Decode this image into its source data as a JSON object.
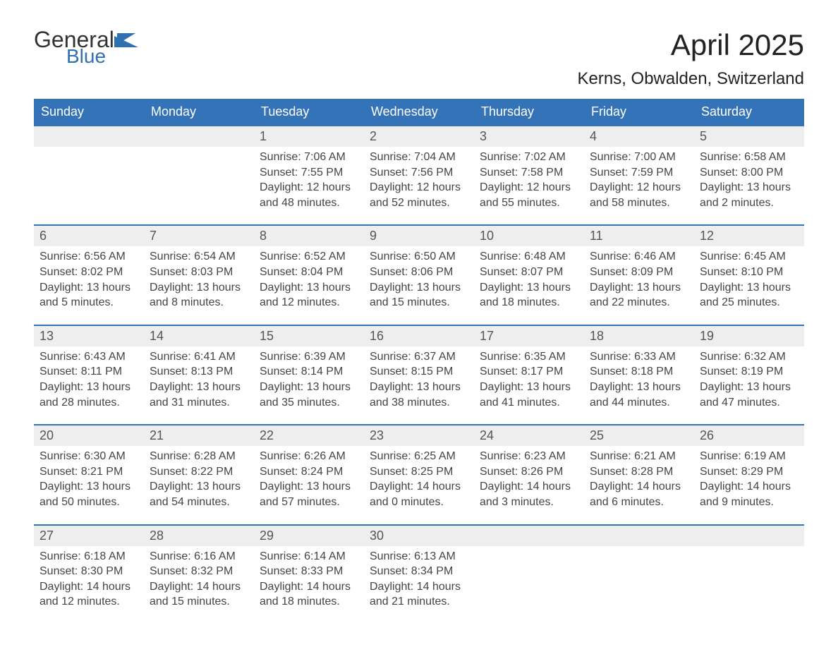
{
  "brand": {
    "line1": "General",
    "line2": "Blue",
    "icon_color": "#2f70b3",
    "text_color": "#333333"
  },
  "title": "April 2025",
  "location": "Kerns, Obwalden, Switzerland",
  "colors": {
    "header_bg": "#3573b8",
    "header_text": "#ffffff",
    "daynum_bg": "#eeeeee",
    "border": "#3573b8",
    "body_text": "#444444",
    "daynum_text": "#555555",
    "background": "#ffffff"
  },
  "typography": {
    "title_fontsize": 42,
    "location_fontsize": 24,
    "weekday_fontsize": 18,
    "daynum_fontsize": 18,
    "detail_fontsize": 16
  },
  "weekdays": [
    "Sunday",
    "Monday",
    "Tuesday",
    "Wednesday",
    "Thursday",
    "Friday",
    "Saturday"
  ],
  "weeks": [
    [
      {
        "n": "",
        "sunrise": "",
        "sunset": "",
        "daylight": ""
      },
      {
        "n": "",
        "sunrise": "",
        "sunset": "",
        "daylight": ""
      },
      {
        "n": "1",
        "sunrise": "Sunrise: 7:06 AM",
        "sunset": "Sunset: 7:55 PM",
        "daylight": "Daylight: 12 hours and 48 minutes."
      },
      {
        "n": "2",
        "sunrise": "Sunrise: 7:04 AM",
        "sunset": "Sunset: 7:56 PM",
        "daylight": "Daylight: 12 hours and 52 minutes."
      },
      {
        "n": "3",
        "sunrise": "Sunrise: 7:02 AM",
        "sunset": "Sunset: 7:58 PM",
        "daylight": "Daylight: 12 hours and 55 minutes."
      },
      {
        "n": "4",
        "sunrise": "Sunrise: 7:00 AM",
        "sunset": "Sunset: 7:59 PM",
        "daylight": "Daylight: 12 hours and 58 minutes."
      },
      {
        "n": "5",
        "sunrise": "Sunrise: 6:58 AM",
        "sunset": "Sunset: 8:00 PM",
        "daylight": "Daylight: 13 hours and 2 minutes."
      }
    ],
    [
      {
        "n": "6",
        "sunrise": "Sunrise: 6:56 AM",
        "sunset": "Sunset: 8:02 PM",
        "daylight": "Daylight: 13 hours and 5 minutes."
      },
      {
        "n": "7",
        "sunrise": "Sunrise: 6:54 AM",
        "sunset": "Sunset: 8:03 PM",
        "daylight": "Daylight: 13 hours and 8 minutes."
      },
      {
        "n": "8",
        "sunrise": "Sunrise: 6:52 AM",
        "sunset": "Sunset: 8:04 PM",
        "daylight": "Daylight: 13 hours and 12 minutes."
      },
      {
        "n": "9",
        "sunrise": "Sunrise: 6:50 AM",
        "sunset": "Sunset: 8:06 PM",
        "daylight": "Daylight: 13 hours and 15 minutes."
      },
      {
        "n": "10",
        "sunrise": "Sunrise: 6:48 AM",
        "sunset": "Sunset: 8:07 PM",
        "daylight": "Daylight: 13 hours and 18 minutes."
      },
      {
        "n": "11",
        "sunrise": "Sunrise: 6:46 AM",
        "sunset": "Sunset: 8:09 PM",
        "daylight": "Daylight: 13 hours and 22 minutes."
      },
      {
        "n": "12",
        "sunrise": "Sunrise: 6:45 AM",
        "sunset": "Sunset: 8:10 PM",
        "daylight": "Daylight: 13 hours and 25 minutes."
      }
    ],
    [
      {
        "n": "13",
        "sunrise": "Sunrise: 6:43 AM",
        "sunset": "Sunset: 8:11 PM",
        "daylight": "Daylight: 13 hours and 28 minutes."
      },
      {
        "n": "14",
        "sunrise": "Sunrise: 6:41 AM",
        "sunset": "Sunset: 8:13 PM",
        "daylight": "Daylight: 13 hours and 31 minutes."
      },
      {
        "n": "15",
        "sunrise": "Sunrise: 6:39 AM",
        "sunset": "Sunset: 8:14 PM",
        "daylight": "Daylight: 13 hours and 35 minutes."
      },
      {
        "n": "16",
        "sunrise": "Sunrise: 6:37 AM",
        "sunset": "Sunset: 8:15 PM",
        "daylight": "Daylight: 13 hours and 38 minutes."
      },
      {
        "n": "17",
        "sunrise": "Sunrise: 6:35 AM",
        "sunset": "Sunset: 8:17 PM",
        "daylight": "Daylight: 13 hours and 41 minutes."
      },
      {
        "n": "18",
        "sunrise": "Sunrise: 6:33 AM",
        "sunset": "Sunset: 8:18 PM",
        "daylight": "Daylight: 13 hours and 44 minutes."
      },
      {
        "n": "19",
        "sunrise": "Sunrise: 6:32 AM",
        "sunset": "Sunset: 8:19 PM",
        "daylight": "Daylight: 13 hours and 47 minutes."
      }
    ],
    [
      {
        "n": "20",
        "sunrise": "Sunrise: 6:30 AM",
        "sunset": "Sunset: 8:21 PM",
        "daylight": "Daylight: 13 hours and 50 minutes."
      },
      {
        "n": "21",
        "sunrise": "Sunrise: 6:28 AM",
        "sunset": "Sunset: 8:22 PM",
        "daylight": "Daylight: 13 hours and 54 minutes."
      },
      {
        "n": "22",
        "sunrise": "Sunrise: 6:26 AM",
        "sunset": "Sunset: 8:24 PM",
        "daylight": "Daylight: 13 hours and 57 minutes."
      },
      {
        "n": "23",
        "sunrise": "Sunrise: 6:25 AM",
        "sunset": "Sunset: 8:25 PM",
        "daylight": "Daylight: 14 hours and 0 minutes."
      },
      {
        "n": "24",
        "sunrise": "Sunrise: 6:23 AM",
        "sunset": "Sunset: 8:26 PM",
        "daylight": "Daylight: 14 hours and 3 minutes."
      },
      {
        "n": "25",
        "sunrise": "Sunrise: 6:21 AM",
        "sunset": "Sunset: 8:28 PM",
        "daylight": "Daylight: 14 hours and 6 minutes."
      },
      {
        "n": "26",
        "sunrise": "Sunrise: 6:19 AM",
        "sunset": "Sunset: 8:29 PM",
        "daylight": "Daylight: 14 hours and 9 minutes."
      }
    ],
    [
      {
        "n": "27",
        "sunrise": "Sunrise: 6:18 AM",
        "sunset": "Sunset: 8:30 PM",
        "daylight": "Daylight: 14 hours and 12 minutes."
      },
      {
        "n": "28",
        "sunrise": "Sunrise: 6:16 AM",
        "sunset": "Sunset: 8:32 PM",
        "daylight": "Daylight: 14 hours and 15 minutes."
      },
      {
        "n": "29",
        "sunrise": "Sunrise: 6:14 AM",
        "sunset": "Sunset: 8:33 PM",
        "daylight": "Daylight: 14 hours and 18 minutes."
      },
      {
        "n": "30",
        "sunrise": "Sunrise: 6:13 AM",
        "sunset": "Sunset: 8:34 PM",
        "daylight": "Daylight: 14 hours and 21 minutes."
      },
      {
        "n": "",
        "sunrise": "",
        "sunset": "",
        "daylight": ""
      },
      {
        "n": "",
        "sunrise": "",
        "sunset": "",
        "daylight": ""
      },
      {
        "n": "",
        "sunrise": "",
        "sunset": "",
        "daylight": ""
      }
    ]
  ]
}
